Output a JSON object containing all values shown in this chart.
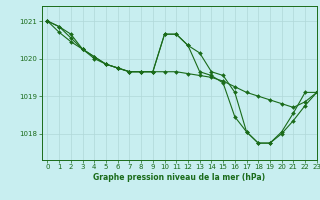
{
  "title": "Graphe pression niveau de la mer (hPa)",
  "bg_color": "#c8eef0",
  "line_color": "#1a6b1a",
  "grid_color": "#b0d8d8",
  "xlim": [
    -0.5,
    23
  ],
  "ylim": [
    1017.3,
    1021.4
  ],
  "yticks": [
    1018,
    1019,
    1020,
    1021
  ],
  "xticks": [
    0,
    1,
    2,
    3,
    4,
    5,
    6,
    7,
    8,
    9,
    10,
    11,
    12,
    13,
    14,
    15,
    16,
    17,
    18,
    19,
    20,
    21,
    22,
    23
  ],
  "series": [
    [
      1021.0,
      1020.85,
      1020.65,
      1020.25,
      1020.05,
      1019.85,
      1019.75,
      1019.65,
      1019.65,
      1019.65,
      1019.65,
      1019.65,
      1019.6,
      1019.55,
      1019.5,
      1019.4,
      1019.25,
      1019.1,
      1019.0,
      1018.9,
      1018.8,
      1018.7,
      1018.85,
      1019.1
    ],
    [
      1021.0,
      1020.85,
      1020.55,
      1020.25,
      1020.05,
      1019.85,
      1019.75,
      1019.65,
      1019.65,
      1019.65,
      1020.65,
      1020.65,
      1020.35,
      1019.65,
      1019.55,
      1019.35,
      1018.45,
      1018.05,
      1017.75,
      1017.75,
      1018.05,
      1018.55,
      1019.1,
      1019.1
    ],
    [
      1021.0,
      1020.7,
      1020.45,
      1020.25,
      1020.0,
      1019.85,
      1019.75,
      1019.65,
      1019.65,
      1019.65,
      1020.65,
      1020.65,
      1020.35,
      1020.15,
      1019.65,
      1019.55,
      1019.1,
      1018.05,
      1017.75,
      1017.75,
      1018.0,
      1018.35,
      1018.75,
      1019.1
    ]
  ],
  "marker": "D",
  "markersize": 2.0,
  "linewidth": 0.8,
  "tick_fontsize": 5.0,
  "xlabel_fontsize": 5.5
}
